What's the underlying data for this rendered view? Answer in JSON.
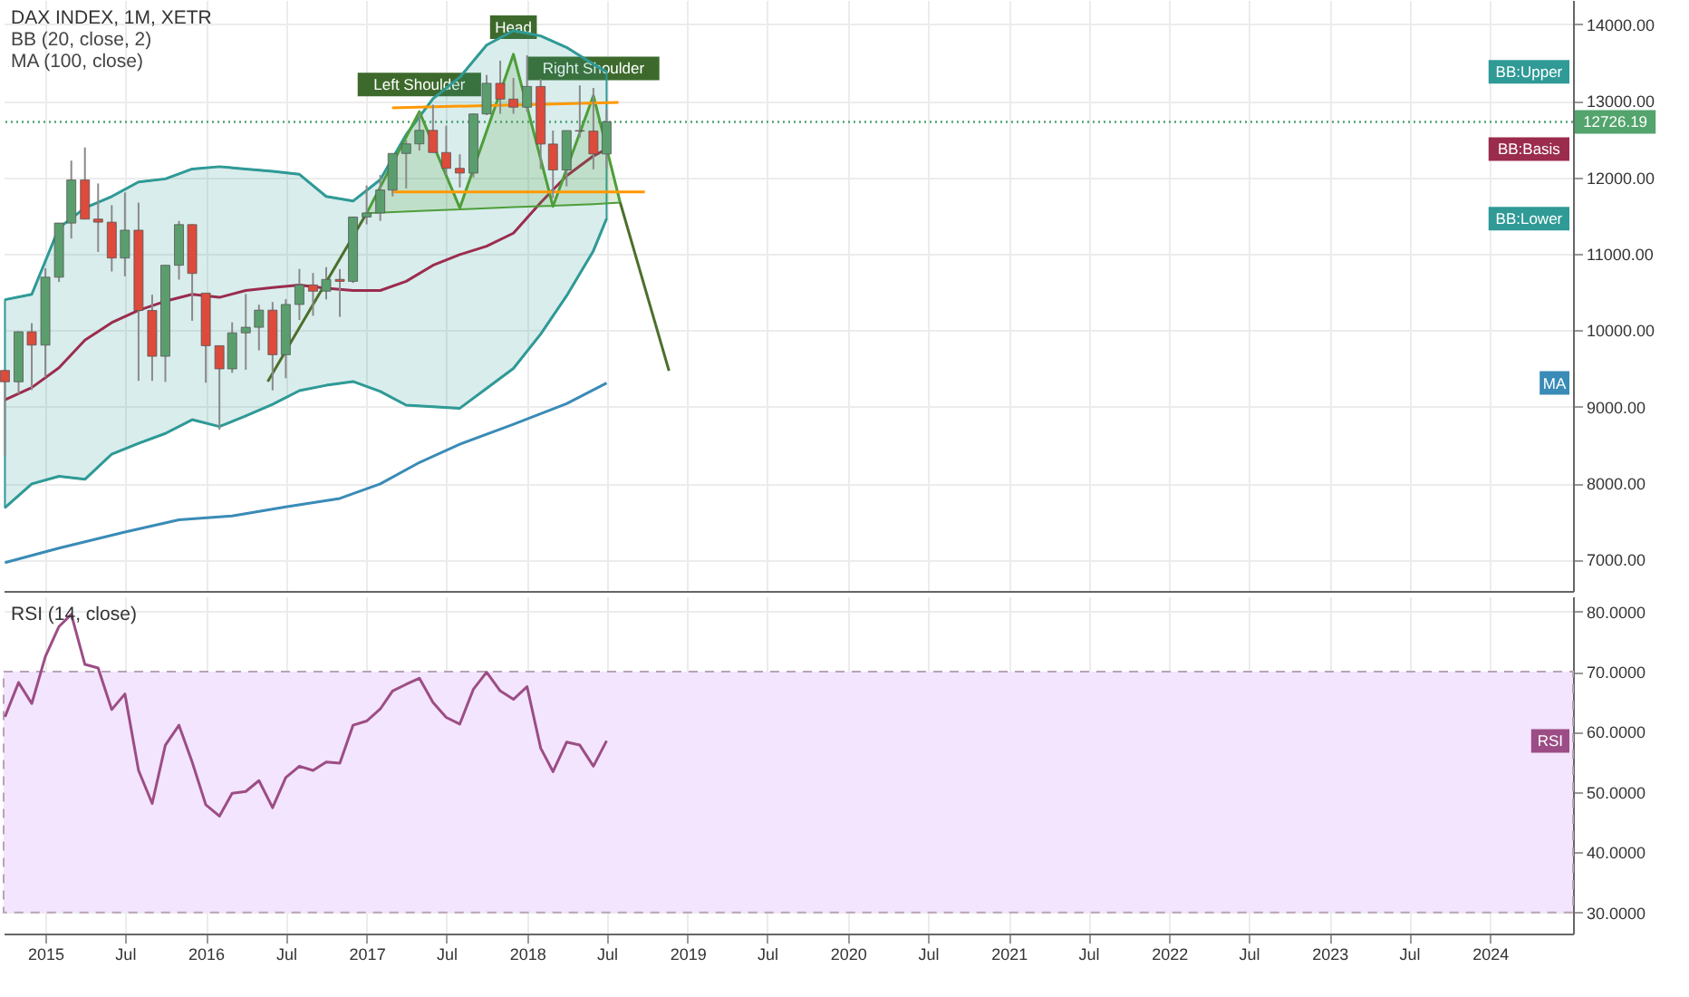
{
  "chart_data": [
    {
      "type": "candlestick",
      "title": "DAX INDEX, 1M, XETR",
      "annotations": [
        "BB (20, close, 2)",
        "MA (100, close)",
        {
          "text": "Left Shoulder",
          "x": "2017-05",
          "y": 12860
        },
        {
          "text": "Head",
          "x": "2017-12",
          "y": 13610
        },
        {
          "text": "Right Shoulder",
          "x": "2018-06",
          "y": 13070
        }
      ],
      "x": [
        "2014-10",
        "2014-11",
        "2014-12",
        "2015-01",
        "2015-02",
        "2015-03",
        "2015-04",
        "2015-05",
        "2015-06",
        "2015-07",
        "2015-08",
        "2015-09",
        "2015-10",
        "2015-11",
        "2015-12",
        "2016-01",
        "2016-02",
        "2016-03",
        "2016-04",
        "2016-05",
        "2016-06",
        "2016-07",
        "2016-08",
        "2016-09",
        "2016-10",
        "2016-11",
        "2016-12",
        "2017-01",
        "2017-02",
        "2017-03",
        "2017-04",
        "2017-05",
        "2017-06",
        "2017-07",
        "2017-08",
        "2017-09",
        "2017-10",
        "2017-11",
        "2017-12",
        "2018-01",
        "2018-02",
        "2018-03",
        "2018-04",
        "2018-05",
        "2018-06",
        "2018-07"
      ],
      "ohlc": [
        [
          9474,
          9494,
          8355,
          9326
        ],
        [
          9326,
          9985,
          9166,
          9980
        ],
        [
          9980,
          10093,
          9219,
          9806
        ],
        [
          9806,
          10810,
          9382,
          10694
        ],
        [
          10694,
          11402,
          10632,
          11402
        ],
        [
          11402,
          12219,
          11200,
          11966
        ],
        [
          11966,
          12391,
          11454,
          11454
        ],
        [
          11454,
          11920,
          11025,
          11414
        ],
        [
          11414,
          11636,
          10769,
          10945
        ],
        [
          10945,
          11802,
          10705,
          11309
        ],
        [
          11309,
          11670,
          9338,
          10259
        ],
        [
          10259,
          10465,
          9338,
          9660
        ],
        [
          9660,
          10850,
          9325,
          10850
        ],
        [
          10850,
          11430,
          10662,
          11382
        ],
        [
          11382,
          11386,
          10124,
          10743
        ],
        [
          10486,
          10486,
          9314,
          9798
        ],
        [
          9798,
          9800,
          8699,
          9495
        ],
        [
          9495,
          10104,
          9443,
          9966
        ],
        [
          9966,
          10474,
          9484,
          10039
        ],
        [
          10039,
          10335,
          9737,
          10263
        ],
        [
          10263,
          10369,
          9214,
          9680
        ],
        [
          9680,
          10406,
          9373,
          10337
        ],
        [
          10337,
          10802,
          10134,
          10593
        ],
        [
          10593,
          10749,
          10189,
          10511
        ],
        [
          10511,
          10826,
          10403,
          10665
        ],
        [
          10665,
          10800,
          10175,
          10640
        ],
        [
          10640,
          11481,
          10619,
          11481
        ],
        [
          11481,
          11893,
          11386,
          11535
        ],
        [
          11535,
          12031,
          11431,
          11834
        ],
        [
          11834,
          12313,
          11750,
          12313
        ],
        [
          12313,
          12486,
          11855,
          12438
        ],
        [
          12438,
          12842,
          12350,
          12615
        ],
        [
          12615,
          12951,
          12325,
          12325
        ],
        [
          12325,
          12676,
          12029,
          12118
        ],
        [
          12118,
          12302,
          11868,
          12056
        ],
        [
          12056,
          12834,
          12000,
          12829
        ],
        [
          12829,
          13340,
          12814,
          13230
        ],
        [
          13230,
          13526,
          12831,
          13024
        ],
        [
          13024,
          13300,
          12831,
          12918
        ],
        [
          12918,
          13597,
          12858,
          13189
        ],
        [
          13189,
          13289,
          12108,
          12436
        ],
        [
          12436,
          12613,
          11727,
          12097
        ],
        [
          12097,
          12613,
          11882,
          12612
        ],
        [
          12612,
          13204,
          12521,
          12605
        ],
        [
          12605,
          13170,
          12104,
          12306
        ],
        [
          12306,
          12887,
          12117,
          12726.19
        ]
      ],
      "colors": [
        "#dc4b3b",
        "#5b9e6e",
        "#dc4b3b",
        "#5b9e6e",
        "#5b9e6e",
        "#5b9e6e",
        "#dc4b3b",
        "#dc4b3b",
        "#dc4b3b",
        "#5b9e6e",
        "#dc4b3b",
        "#dc4b3b",
        "#5b9e6e",
        "#5b9e6e",
        "#dc4b3b",
        "#dc4b3b",
        "#dc4b3b",
        "#5b9e6e",
        "#5b9e6e",
        "#5b9e6e",
        "#dc4b3b",
        "#5b9e6e",
        "#5b9e6e",
        "#dc4b3b",
        "#5b9e6e",
        "#dc4b3b",
        "#5b9e6e",
        "#5b9e6e",
        "#5b9e6e",
        "#5b9e6e",
        "#5b9e6e",
        "#5b9e6e",
        "#dc4b3b",
        "#dc4b3b",
        "#dc4b3b",
        "#5b9e6e",
        "#5b9e6e",
        "#dc4b3b",
        "#dc4b3b",
        "#5b9e6e",
        "#dc4b3b",
        "#dc4b3b",
        "#5b9e6e",
        "#dc4b3b",
        "#dc4b3b",
        "#5b9e6e"
      ],
      "series": [
        {
          "name": "BB:Upper",
          "type": "line",
          "color": "#2f9a96",
          "upper": [
            10400,
            10470,
            11340,
            11600,
            11750,
            11940,
            11980,
            12110,
            12140,
            12110,
            12080,
            12040,
            11750,
            11690,
            11970,
            12560,
            13030,
            13310,
            13730,
            13920,
            13850,
            13700,
            13480,
            13380
          ],
          "x": [
            "2014-10",
            "2014-12",
            "2015-02",
            "2015-04",
            "2015-06",
            "2015-08",
            "2015-10",
            "2015-12",
            "2016-02",
            "2016-04",
            "2016-06",
            "2016-08",
            "2016-10",
            "2016-12",
            "2017-02",
            "2017-04",
            "2017-06",
            "2017-08",
            "2017-10",
            "2017-12",
            "2018-02",
            "2018-04",
            "2018-06",
            "2018-07"
          ],
          "values": [
            10400,
            10470,
            11340,
            11600,
            11750,
            11940,
            11980,
            12110,
            12140,
            12110,
            12080,
            12040,
            11750,
            11690,
            11970,
            12560,
            13030,
            13310,
            13730,
            13920,
            13850,
            13700,
            13480,
            13380
          ],
          "lower": [
            7680,
            7990,
            8090,
            8050,
            8380,
            8520,
            8650,
            8830,
            8740,
            8880,
            9030,
            9210,
            9280,
            9330,
            9200,
            9020,
            9000,
            8980,
            9240,
            9500,
            9950,
            10450,
            11040,
            11460
          ]
        },
        {
          "name": "BB:Basis",
          "type": "line",
          "color": "#9b2c4e",
          "x": [
            "2014-10",
            "2014-12",
            "2015-02",
            "2015-04",
            "2015-06",
            "2015-08",
            "2015-10",
            "2015-12",
            "2016-02",
            "2016-04",
            "2016-06",
            "2016-08",
            "2016-10",
            "2016-12",
            "2017-02",
            "2017-04",
            "2017-06",
            "2017-08",
            "2017-10",
            "2017-12",
            "2018-02",
            "2018-04",
            "2018-06",
            "2018-07"
          ],
          "values": [
            9090,
            9250,
            9510,
            9870,
            10100,
            10260,
            10380,
            10470,
            10430,
            10520,
            10560,
            10590,
            10550,
            10520,
            10520,
            10640,
            10850,
            10990,
            11100,
            11270,
            11670,
            12020,
            12280,
            12370
          ]
        },
        {
          "name": "BB:Lower",
          "type": "line",
          "color": "#2f9a96",
          "x": [
            "2014-10",
            "2014-12",
            "2015-02",
            "2015-04",
            "2015-06",
            "2015-08",
            "2015-10",
            "2015-12",
            "2016-02",
            "2016-04",
            "2016-06",
            "2016-08",
            "2016-10",
            "2016-12",
            "2017-02",
            "2017-04",
            "2017-06",
            "2017-08",
            "2017-10",
            "2017-12",
            "2018-02",
            "2018-04",
            "2018-06",
            "2018-07"
          ],
          "values": [
            7680,
            7990,
            8090,
            8050,
            8380,
            8520,
            8650,
            8830,
            8740,
            8880,
            9030,
            9210,
            9280,
            9330,
            9200,
            9020,
            9000,
            8980,
            9240,
            9500,
            9950,
            10450,
            11040,
            11460
          ]
        },
        {
          "name": "MA",
          "type": "line",
          "color": "#3a8bb7",
          "x": [
            "2014-10",
            "2015-02",
            "2015-07",
            "2015-11",
            "2016-03",
            "2016-07",
            "2016-11",
            "2017-02",
            "2017-05",
            "2017-08",
            "2017-12",
            "2018-04",
            "2018-07"
          ],
          "values": [
            6960,
            7150,
            7360,
            7520,
            7570,
            7690,
            7800,
            7990,
            8270,
            8510,
            8770,
            9040,
            9310
          ]
        },
        {
          "type": "line",
          "color": "#4e9e3a",
          "x": [
            "2017-01",
            "2017-05",
            "2017-08",
            "2017-12",
            "2018-03",
            "2018-06",
            "2018-08"
          ],
          "values": [
            11530,
            12860,
            11600,
            13610,
            11620,
            13070,
            11670
          ],
          "upper": [
            11530,
            12860,
            11600,
            13610,
            11620,
            13070,
            11670
          ],
          "lower": [
            11530,
            11560,
            11580,
            11610,
            11630,
            11650,
            11670
          ]
        },
        {
          "type": "line",
          "color": "#4b6f2b",
          "x": [
            "2016-05-21",
            "2017-01"
          ],
          "values": [
            9330,
            11530
          ]
        },
        {
          "type": "line",
          "color": "#4b6f2b",
          "x": [
            "2018-08",
            "2018-11-20"
          ],
          "values": [
            11670,
            9470
          ]
        },
        {
          "type": "line",
          "color": "#ff9800",
          "x": [
            "2017-02-28",
            "2018-07-28"
          ],
          "values": [
            12910,
            12980
          ]
        },
        {
          "type": "line",
          "color": "#ff9800",
          "x": [
            "2017-02-28",
            "2018-09-26"
          ],
          "values": [
            11810,
            11810
          ]
        }
      ],
      "ref_lines": [
        {
          "axis": "y",
          "value": 12726.19,
          "label": "12726.19",
          "color": "#53a46d",
          "line_style": "dotted"
        }
      ],
      "xlim": [
        "2014-09-28",
        "2024-07-08"
      ],
      "xticks": [
        {
          "value": "2015-01-01",
          "label": null
        },
        {
          "value": "2015-07-01",
          "label": null
        },
        {
          "value": "2016-01-01",
          "label": null
        },
        {
          "value": "2016-07-01",
          "label": null
        },
        {
          "value": "2017-01-01",
          "label": null
        },
        {
          "value": "2017-07-01",
          "label": null
        },
        {
          "value": "2018-01-01",
          "label": null
        },
        {
          "value": "2018-07-01",
          "label": null
        },
        {
          "value": "2019-01-01",
          "label": null
        },
        {
          "value": "2019-07-01",
          "label": null
        },
        {
          "value": "2020-01-01",
          "label": null
        },
        {
          "value": "2020-07-01",
          "label": null
        },
        {
          "value": "2021-01-01",
          "label": null
        },
        {
          "value": "2021-07-01",
          "label": null
        },
        {
          "value": "2022-01-01",
          "label": null
        },
        {
          "value": "2022-07-01",
          "label": null
        },
        {
          "value": "2023-01-01",
          "label": null
        },
        {
          "value": "2023-07-01",
          "label": null
        },
        {
          "value": "2024-01-01",
          "label": null
        }
      ],
      "ylim": [
        6590,
        14320
      ],
      "yticks": [
        {
          "value": 7000,
          "label": "7000.00"
        },
        {
          "value": 8000,
          "label": "8000.00"
        },
        {
          "value": 9000,
          "label": "9000.00"
        },
        {
          "value": 10000,
          "label": "10000.00"
        },
        {
          "value": 11000,
          "label": "11000.00"
        },
        {
          "value": 12000,
          "label": "12000.00"
        },
        {
          "value": 13000,
          "label": "13000.00"
        },
        {
          "value": 14000,
          "label": "14000.00"
        }
      ],
      "grid": true,
      "tick_labels": "y"
    },
    {
      "type": "line",
      "title": "RSI (14, close)",
      "x": [
        "2014-10",
        "2014-11",
        "2014-12",
        "2015-01",
        "2015-02",
        "2015-03",
        "2015-04",
        "2015-05",
        "2015-06",
        "2015-07",
        "2015-08",
        "2015-09",
        "2015-10",
        "2015-11",
        "2015-12",
        "2016-01",
        "2016-02",
        "2016-03",
        "2016-04",
        "2016-05",
        "2016-06",
        "2016-07",
        "2016-08",
        "2016-09",
        "2016-10",
        "2016-11",
        "2016-12",
        "2017-01",
        "2017-02",
        "2017-03",
        "2017-04",
        "2017-05",
        "2017-06",
        "2017-07",
        "2017-08",
        "2017-09",
        "2017-10",
        "2017-11",
        "2017-12",
        "2018-01",
        "2018-02",
        "2018-03",
        "2018-04",
        "2018-05",
        "2018-06",
        "2018-07"
      ],
      "series": [
        {
          "name": "RSI",
          "color": "#9c4d85",
          "values": [
            62.5,
            68.2,
            64.7,
            72.5,
            77.5,
            79.5,
            71.2,
            70.6,
            63.7,
            66.3,
            53.6,
            48.1,
            57.8,
            61.1,
            55.0,
            47.9,
            46.0,
            49.8,
            50.1,
            51.9,
            47.4,
            52.4,
            54.3,
            53.6,
            55.0,
            54.8,
            61.1,
            61.8,
            63.8,
            66.8,
            67.9,
            68.9,
            64.9,
            62.4,
            61.3,
            67.1,
            69.9,
            66.8,
            65.4,
            67.5,
            57.3,
            53.4,
            58.3,
            57.8,
            54.3,
            58.5
          ]
        }
      ],
      "bands": [
        {
          "axis": "y",
          "from": 30,
          "to": 70,
          "color": "#f3e5fd"
        }
      ],
      "xlim": [
        "2014-09-28",
        "2024-07-08"
      ],
      "xticks": [
        {
          "value": "2015-01-01",
          "label": "2015"
        },
        {
          "value": "2015-07-01",
          "label": "Jul"
        },
        {
          "value": "2016-01-01",
          "label": "2016"
        },
        {
          "value": "2016-07-01",
          "label": "Jul"
        },
        {
          "value": "2017-01-01",
          "label": "2017"
        },
        {
          "value": "2017-07-01",
          "label": "Jul"
        },
        {
          "value": "2018-01-01",
          "label": "2018"
        },
        {
          "value": "2018-07-01",
          "label": "Jul"
        },
        {
          "value": "2019-01-01",
          "label": "2019"
        },
        {
          "value": "2019-07-01",
          "label": "Jul"
        },
        {
          "value": "2020-01-01",
          "label": "2020"
        },
        {
          "value": "2020-07-01",
          "label": "Jul"
        },
        {
          "value": "2021-01-01",
          "label": "2021"
        },
        {
          "value": "2021-07-01",
          "label": "Jul"
        },
        {
          "value": "2022-01-01",
          "label": "2022"
        },
        {
          "value": "2022-07-01",
          "label": "Jul"
        },
        {
          "value": "2023-01-01",
          "label": "2023"
        },
        {
          "value": "2023-07-01",
          "label": "Jul"
        },
        {
          "value": "2024-01-01",
          "label": "2024"
        }
      ],
      "ylim": [
        26.5,
        82.5
      ],
      "yticks": [
        {
          "value": 30,
          "label": "30.0000"
        },
        {
          "value": 40,
          "label": "40.0000"
        },
        {
          "value": 50,
          "label": "50.0000"
        },
        {
          "value": 60,
          "label": "60.0000"
        },
        {
          "value": 70,
          "label": "70.0000"
        },
        {
          "value": 80,
          "label": "80.0000"
        }
      ],
      "grid": true
    }
  ]
}
